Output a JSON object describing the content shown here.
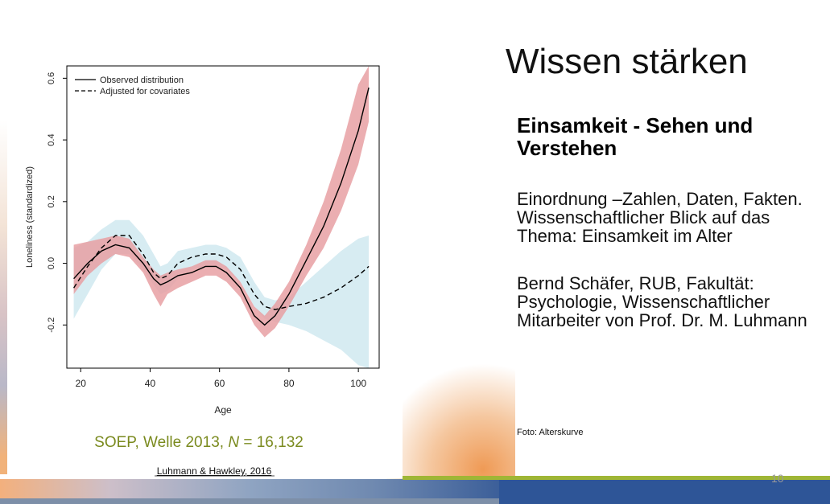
{
  "slide": {
    "title": "Wissen stärken",
    "subtitle": "Einsamkeit - Sehen und Verstehen",
    "paragraph1": "Einordnung –Zahlen, Daten, Fakten.  Wissenschaftlicher Blick auf das Thema: Einsamkeit im Alter",
    "paragraph2": "Bernd Schäfer, RUB, Fakultät: Psychologie, Wissenschaftlicher Mitarbeiter von Prof. Dr. M. Luhmann",
    "photo_caption": "Foto: Alterskurve",
    "page_number": "10"
  },
  "colors": {
    "accent_green": "#9fb636",
    "accent_blue": "#2e5597",
    "observed_band": "#e8a0a3",
    "adjusted_band": "#bfe0ea",
    "study_label": "#7a8a1e"
  },
  "figure": {
    "study_label_prefix": "SOEP, Welle 2013, ",
    "study_label_n": "N",
    "study_label_suffix": " = 16,132",
    "citation": "Luhmann & Hawkley, 2016"
  },
  "chart_data": {
    "type": "line",
    "title": "",
    "xlabel": "Age",
    "ylabel": "Loneliness (standardized)",
    "xlim": [
      16,
      106
    ],
    "ylim": [
      -0.34,
      0.64
    ],
    "xticks": [
      20,
      40,
      60,
      80,
      100
    ],
    "xtick_labels": [
      "20",
      "40",
      "60",
      "80",
      "100"
    ],
    "yticks": [
      -0.2,
      0.0,
      0.2,
      0.4,
      0.6
    ],
    "ytick_labels": [
      "-0.2",
      "0.0",
      "0.2",
      "0.4",
      "0.6"
    ],
    "legend": [
      "Observed distribution",
      "Adjusted for covariates"
    ],
    "legend_position": "top-left",
    "series": [
      {
        "name": "Observed distribution",
        "style": "solid",
        "points": [
          [
            18,
            -0.05
          ],
          [
            22,
            0.0
          ],
          [
            26,
            0.04
          ],
          [
            30,
            0.06
          ],
          [
            34,
            0.05
          ],
          [
            38,
            0.0
          ],
          [
            41,
            -0.05
          ],
          [
            43,
            -0.07
          ],
          [
            45,
            -0.06
          ],
          [
            48,
            -0.04
          ],
          [
            52,
            -0.03
          ],
          [
            56,
            -0.01
          ],
          [
            59,
            -0.01
          ],
          [
            62,
            -0.03
          ],
          [
            66,
            -0.08
          ],
          [
            70,
            -0.17
          ],
          [
            73,
            -0.2
          ],
          [
            76,
            -0.17
          ],
          [
            80,
            -0.1
          ],
          [
            85,
            0.01
          ],
          [
            90,
            0.12
          ],
          [
            95,
            0.26
          ],
          [
            100,
            0.43
          ],
          [
            103,
            0.57
          ]
        ],
        "band_upper": [
          0.06,
          0.07,
          0.08,
          0.09,
          0.08,
          0.02,
          -0.02,
          -0.04,
          -0.03,
          -0.02,
          -0.01,
          0.01,
          0.01,
          -0.01,
          -0.06,
          -0.14,
          -0.17,
          -0.13,
          -0.06,
          0.06,
          0.2,
          0.37,
          0.58,
          0.68
        ],
        "band_lower": [
          -0.1,
          -0.04,
          0.0,
          0.03,
          0.02,
          -0.03,
          -0.1,
          -0.14,
          -0.1,
          -0.08,
          -0.06,
          -0.04,
          -0.04,
          -0.06,
          -0.11,
          -0.2,
          -0.24,
          -0.21,
          -0.14,
          -0.04,
          0.05,
          0.17,
          0.32,
          0.46
        ]
      },
      {
        "name": "Adjusted for covariates",
        "style": "dashed",
        "points": [
          [
            18,
            -0.08
          ],
          [
            22,
            -0.01
          ],
          [
            26,
            0.05
          ],
          [
            30,
            0.09
          ],
          [
            34,
            0.09
          ],
          [
            38,
            0.03
          ],
          [
            41,
            -0.03
          ],
          [
            43,
            -0.05
          ],
          [
            45,
            -0.04
          ],
          [
            48,
            0.0
          ],
          [
            52,
            0.02
          ],
          [
            56,
            0.03
          ],
          [
            59,
            0.03
          ],
          [
            62,
            0.02
          ],
          [
            66,
            -0.02
          ],
          [
            70,
            -0.1
          ],
          [
            73,
            -0.14
          ],
          [
            76,
            -0.15
          ],
          [
            80,
            -0.14
          ],
          [
            85,
            -0.13
          ],
          [
            90,
            -0.11
          ],
          [
            95,
            -0.08
          ],
          [
            100,
            -0.04
          ],
          [
            103,
            -0.01
          ]
        ],
        "band_upper": [
          0.05,
          0.07,
          0.11,
          0.14,
          0.14,
          0.09,
          0.03,
          -0.01,
          0.0,
          0.04,
          0.05,
          0.06,
          0.06,
          0.05,
          0.02,
          -0.06,
          -0.11,
          -0.12,
          -0.11,
          -0.06,
          -0.01,
          0.04,
          0.08,
          0.09
        ],
        "band_lower": [
          -0.18,
          -0.1,
          -0.02,
          0.03,
          0.03,
          -0.02,
          -0.07,
          -0.1,
          -0.09,
          -0.05,
          -0.02,
          -0.01,
          -0.01,
          -0.02,
          -0.06,
          -0.14,
          -0.18,
          -0.19,
          -0.2,
          -0.22,
          -0.25,
          -0.28,
          -0.33,
          -0.36
        ]
      }
    ]
  }
}
